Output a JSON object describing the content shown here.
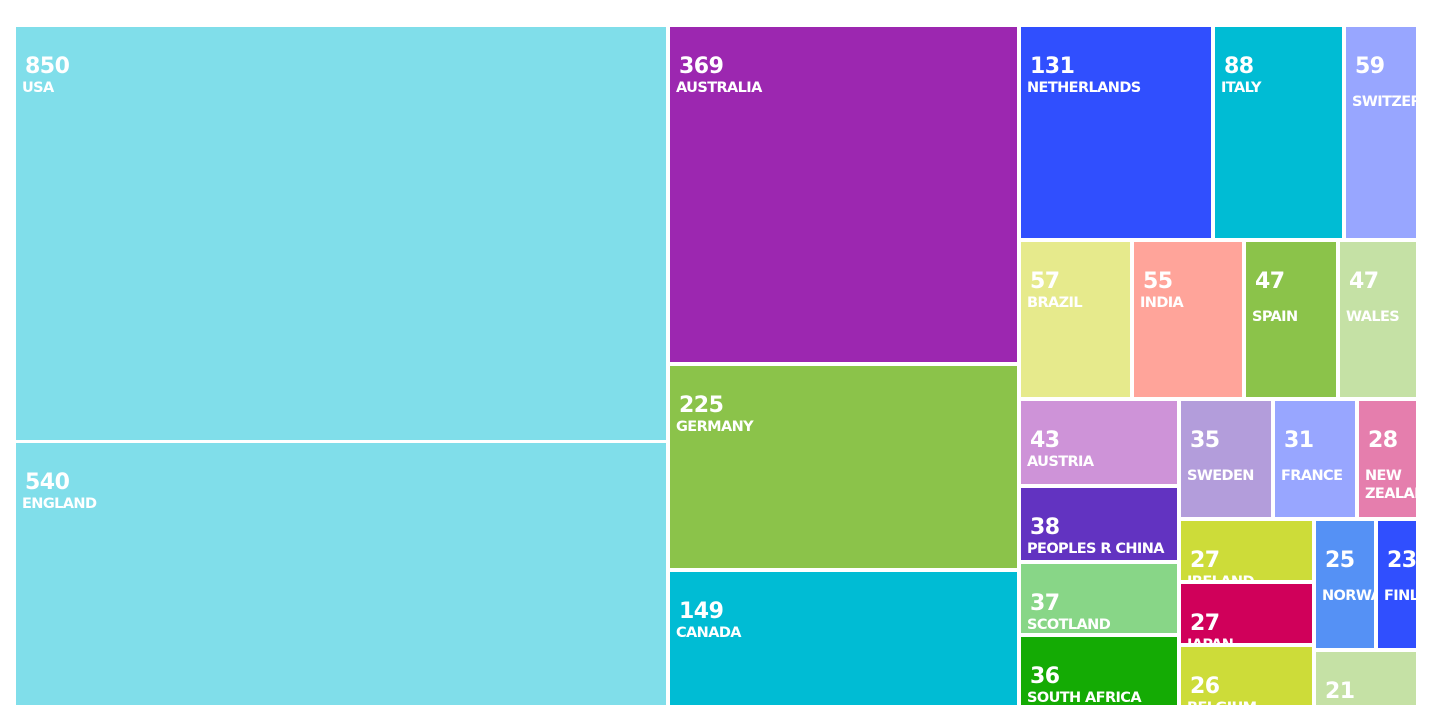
{
  "chart_data": {
    "type": "treemap",
    "colors": {
      "light_blue": "#80deea",
      "purple": "#9c27b0",
      "green": "#8bc34a",
      "teal": "#00bcd4",
      "blue": "#304ffe",
      "periwinkle": "#98a6ff",
      "light_yellow": "#e6ea8c",
      "salmon": "#ffa49a",
      "light_green": "#c5e1a5",
      "orchid": "#ce93d8",
      "lavender": "#b39ddb",
      "pink": "#e57ead",
      "deep_purple": "#6233c1",
      "lime": "#cddc39",
      "cornflower": "#5591f5",
      "mint": "#88d687",
      "crimson": "#d0005a",
      "bright_green": "#14ab04"
    },
    "items": [
      {
        "label": "USA",
        "value": 850,
        "color": "light_blue"
      },
      {
        "label": "ENGLAND",
        "value": 540,
        "color": "light_blue"
      },
      {
        "label": "AUSTRALIA",
        "value": 369,
        "color": "purple"
      },
      {
        "label": "GERMANY",
        "value": 225,
        "color": "green"
      },
      {
        "label": "CANADA",
        "value": 149,
        "color": "teal"
      },
      {
        "label": "NETHERLANDS",
        "value": 131,
        "color": "blue"
      },
      {
        "label": "ITALY",
        "value": 88,
        "color": "teal"
      },
      {
        "label": "SWITZER",
        "value": 59,
        "color": "periwinkle"
      },
      {
        "label": "BRAZIL",
        "value": 57,
        "color": "light_yellow"
      },
      {
        "label": "INDIA",
        "value": 55,
        "color": "salmon"
      },
      {
        "label": "SPAIN",
        "value": 47,
        "color": "green"
      },
      {
        "label": "WALES",
        "value": 47,
        "color": "light_green"
      },
      {
        "label": "AUSTRIA",
        "value": 43,
        "color": "orchid"
      },
      {
        "label": "SWEDEN",
        "value": 35,
        "color": "lavender"
      },
      {
        "label": "FRANCE",
        "value": 31,
        "color": "periwinkle"
      },
      {
        "label": "NEW ZEALAI",
        "value": 28,
        "color": "pink"
      },
      {
        "label": "PEOPLES R CHINA",
        "value": 38,
        "color": "deep_purple"
      },
      {
        "label": "SCOTLAND",
        "value": 37,
        "color": "mint"
      },
      {
        "label": "SOUTH AFRICA",
        "value": 36,
        "color": "bright_green"
      },
      {
        "label": "IRELAND",
        "value": 27,
        "color": "lime"
      },
      {
        "label": "JAPAN",
        "value": 27,
        "color": "crimson"
      },
      {
        "label": "BELGIUM",
        "value": 26,
        "color": "lime"
      },
      {
        "label": "NORWA",
        "value": 25,
        "color": "cornflower"
      },
      {
        "label": "FINL",
        "value": 23,
        "color": "blue"
      },
      {
        "label": "",
        "value": 21,
        "color": "light_green"
      }
    ]
  }
}
